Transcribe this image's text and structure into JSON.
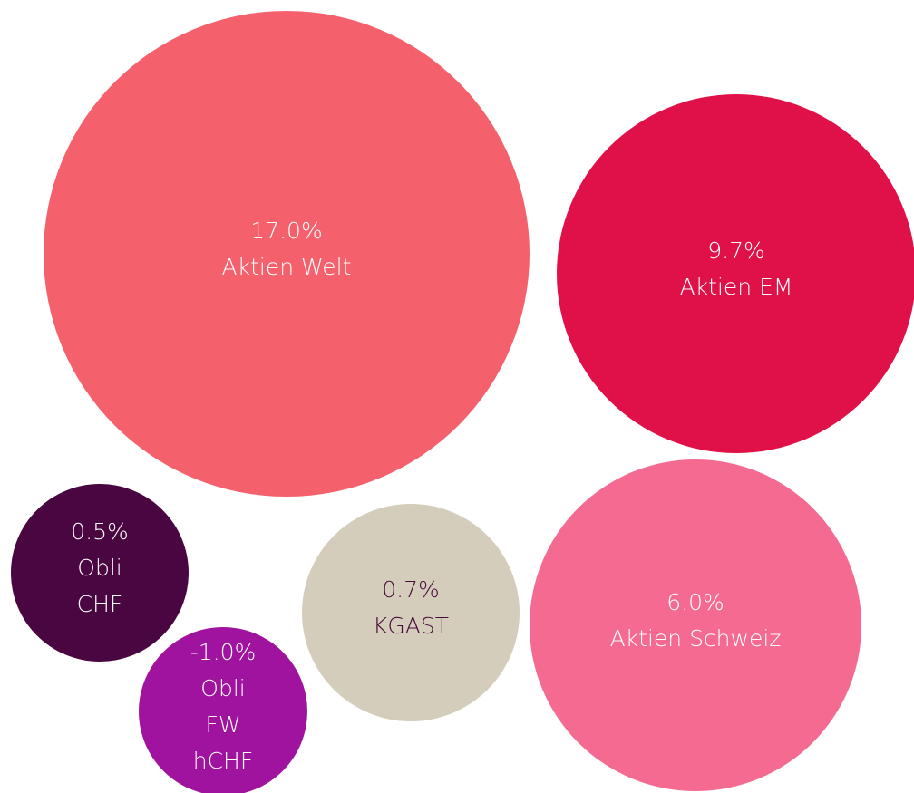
{
  "chart_data": {
    "type": "bubble",
    "categories": [
      [
        "Aktien Welt"
      ],
      [
        "Aktien EM"
      ],
      [
        "Aktien Schweiz"
      ],
      [
        "KGAST"
      ],
      [
        "Obli",
        "CHF"
      ],
      [
        "Obli",
        "FW",
        "hCHF"
      ]
    ],
    "values": [
      17.0,
      9.7,
      6.0,
      0.7,
      0.5,
      -1.0
    ],
    "value_labels": [
      "17.0%",
      "9.7%",
      "6.0%",
      "0.7%",
      "0.5%",
      "-1.0%"
    ],
    "colors": [
      "#f4606b",
      "#e01048",
      "#f46a90",
      "#d4cdbb",
      "#4a0640",
      "#a0139e"
    ]
  }
}
